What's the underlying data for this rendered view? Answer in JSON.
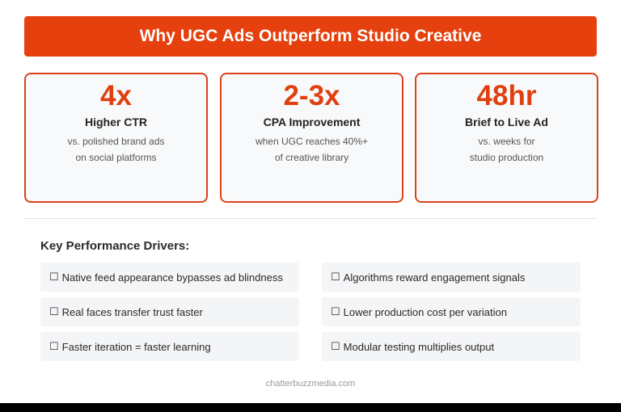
{
  "header": {
    "title": "Why UGC Ads Outperform Studio Creative"
  },
  "stats": [
    {
      "value": "4x",
      "label": "Higher CTR",
      "desc_line1": "vs. polished brand ads",
      "desc_line2": "on social platforms"
    },
    {
      "value": "2-3x",
      "label": "CPA Improvement",
      "desc_line1": "when UGC reaches 40%+",
      "desc_line2": "of creative library"
    },
    {
      "value": "48hr",
      "label": "Brief to Live Ad",
      "desc_line1": "vs. weeks for",
      "desc_line2": "studio production"
    }
  ],
  "drivers": {
    "title": "Key Performance Drivers:",
    "checkbox_glyph": "☐",
    "items": [
      "Native feed appearance bypasses ad blindness",
      "Algorithms reward engagement signals",
      "Real faces transfer trust faster",
      "Lower production cost per variation",
      "Faster iteration = faster learning",
      "Modular testing multiplies output"
    ]
  },
  "footer": {
    "source": "chatterbuzzmedia.com"
  },
  "colors": {
    "accent": "#e5400e",
    "card_border": "#d9431a",
    "card_bg": "#f8f9fa",
    "driver_bg": "#f4f5f7"
  }
}
